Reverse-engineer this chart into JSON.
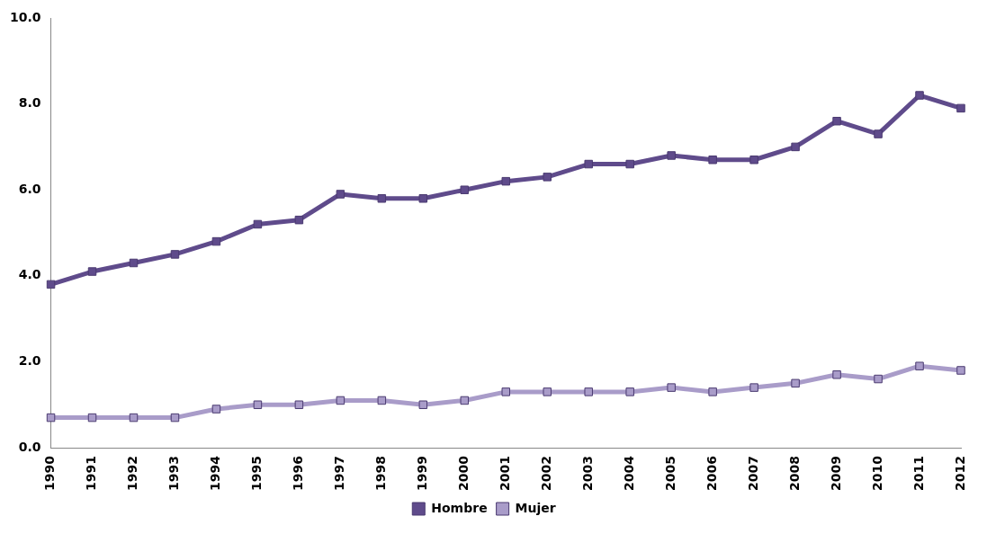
{
  "chart_data": {
    "type": "line",
    "categories": [
      "1990",
      "1991",
      "1992",
      "1993",
      "1994",
      "1995",
      "1996",
      "1997",
      "1998",
      "1999",
      "2000",
      "2001",
      "2002",
      "2003",
      "2004",
      "2005",
      "2006",
      "2007",
      "2008",
      "2009",
      "2010",
      "2011",
      "2012"
    ],
    "series": [
      {
        "name": "Hombre",
        "color": "#5f4b8b",
        "values": [
          3.8,
          4.1,
          4.3,
          4.5,
          4.8,
          5.2,
          5.3,
          5.9,
          5.8,
          5.8,
          6.0,
          6.2,
          6.3,
          6.6,
          6.6,
          6.8,
          6.7,
          6.7,
          7.0,
          7.6,
          7.3,
          8.2,
          7.9
        ]
      },
      {
        "name": "Mujer",
        "color": "#a99cc9",
        "values": [
          0.7,
          0.7,
          0.7,
          0.7,
          0.9,
          1.0,
          1.0,
          1.1,
          1.1,
          1.0,
          1.1,
          1.3,
          1.3,
          1.3,
          1.3,
          1.4,
          1.3,
          1.4,
          1.5,
          1.7,
          1.6,
          1.9,
          1.8
        ]
      }
    ],
    "ylim": [
      0,
      10
    ],
    "yticks": [
      {
        "value": 0,
        "label": "0.0"
      },
      {
        "value": 2,
        "label": "2.0"
      },
      {
        "value": 4,
        "label": "4.0"
      },
      {
        "value": 6,
        "label": "6.0"
      },
      {
        "value": 8,
        "label": "8.0"
      },
      {
        "value": 10,
        "label": "10.0"
      }
    ],
    "grid": false,
    "legend": "bottom",
    "marker": "square",
    "line_style": "solid"
  }
}
